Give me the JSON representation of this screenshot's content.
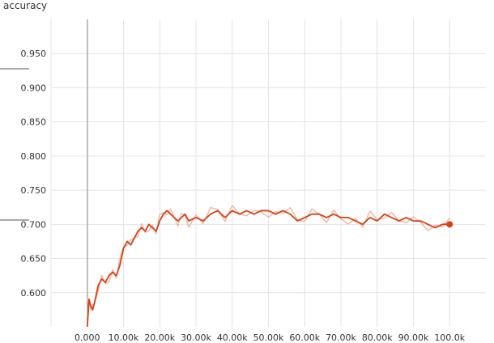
{
  "chart_data": {
    "type": "line",
    "title": "accuracy",
    "xlabel": "",
    "ylabel": "",
    "xlim": [
      -10000,
      110000
    ],
    "ylim": [
      0.55,
      1.0
    ],
    "x_ticks": [
      0,
      10000,
      20000,
      30000,
      40000,
      50000,
      60000,
      70000,
      80000,
      90000,
      100000
    ],
    "x_tick_labels": [
      "0.000",
      "10.00k",
      "20.00k",
      "30.00k",
      "40.00k",
      "50.00k",
      "60.00k",
      "70.00k",
      "80.00k",
      "90.00k",
      "100.0k"
    ],
    "y_ticks": [
      0.6,
      0.65,
      0.7,
      0.75,
      0.8,
      0.85,
      0.9,
      0.95
    ],
    "y_tick_labels": [
      "0.600",
      "0.650",
      "0.700",
      "0.750",
      "0.800",
      "0.850",
      "0.900",
      "0.950"
    ],
    "grid": true,
    "colors": {
      "smoothed": "#d4421a",
      "raw": "#f2b8a8",
      "grid": "#e4e4e4"
    },
    "series": [
      {
        "x": [
          0,
          500,
          1000,
          1500,
          2000,
          3000,
          4000,
          5000,
          6000,
          7000,
          8000,
          9000,
          10000,
          11000,
          12000,
          13000,
          14000,
          15000,
          16000,
          17000,
          18000,
          19000,
          20000,
          21000,
          22000,
          23000,
          24000,
          25000,
          26000,
          27000,
          28000,
          30000,
          32000,
          34000,
          36000,
          38000,
          40000,
          42000,
          44000,
          46000,
          48000,
          50000,
          52000,
          54000,
          56000,
          58000,
          60000,
          62000,
          64000,
          66000,
          68000,
          70000,
          72000,
          74000,
          76000,
          78000,
          80000,
          82000,
          84000,
          86000,
          88000,
          90000,
          92000,
          94000,
          96000,
          98000,
          100000
        ],
        "values": [
          0.55,
          0.59,
          0.58,
          0.575,
          0.585,
          0.61,
          0.62,
          0.615,
          0.625,
          0.63,
          0.625,
          0.64,
          0.665,
          0.675,
          0.67,
          0.68,
          0.69,
          0.695,
          0.69,
          0.7,
          0.695,
          0.69,
          0.705,
          0.715,
          0.72,
          0.715,
          0.71,
          0.705,
          0.71,
          0.715,
          0.705,
          0.71,
          0.705,
          0.715,
          0.72,
          0.71,
          0.72,
          0.715,
          0.72,
          0.715,
          0.72,
          0.72,
          0.715,
          0.72,
          0.715,
          0.705,
          0.71,
          0.715,
          0.715,
          0.71,
          0.715,
          0.71,
          0.71,
          0.705,
          0.7,
          0.71,
          0.705,
          0.715,
          0.71,
          0.705,
          0.71,
          0.705,
          0.705,
          0.7,
          0.695,
          0.7,
          0.7
        ]
      }
    ]
  }
}
